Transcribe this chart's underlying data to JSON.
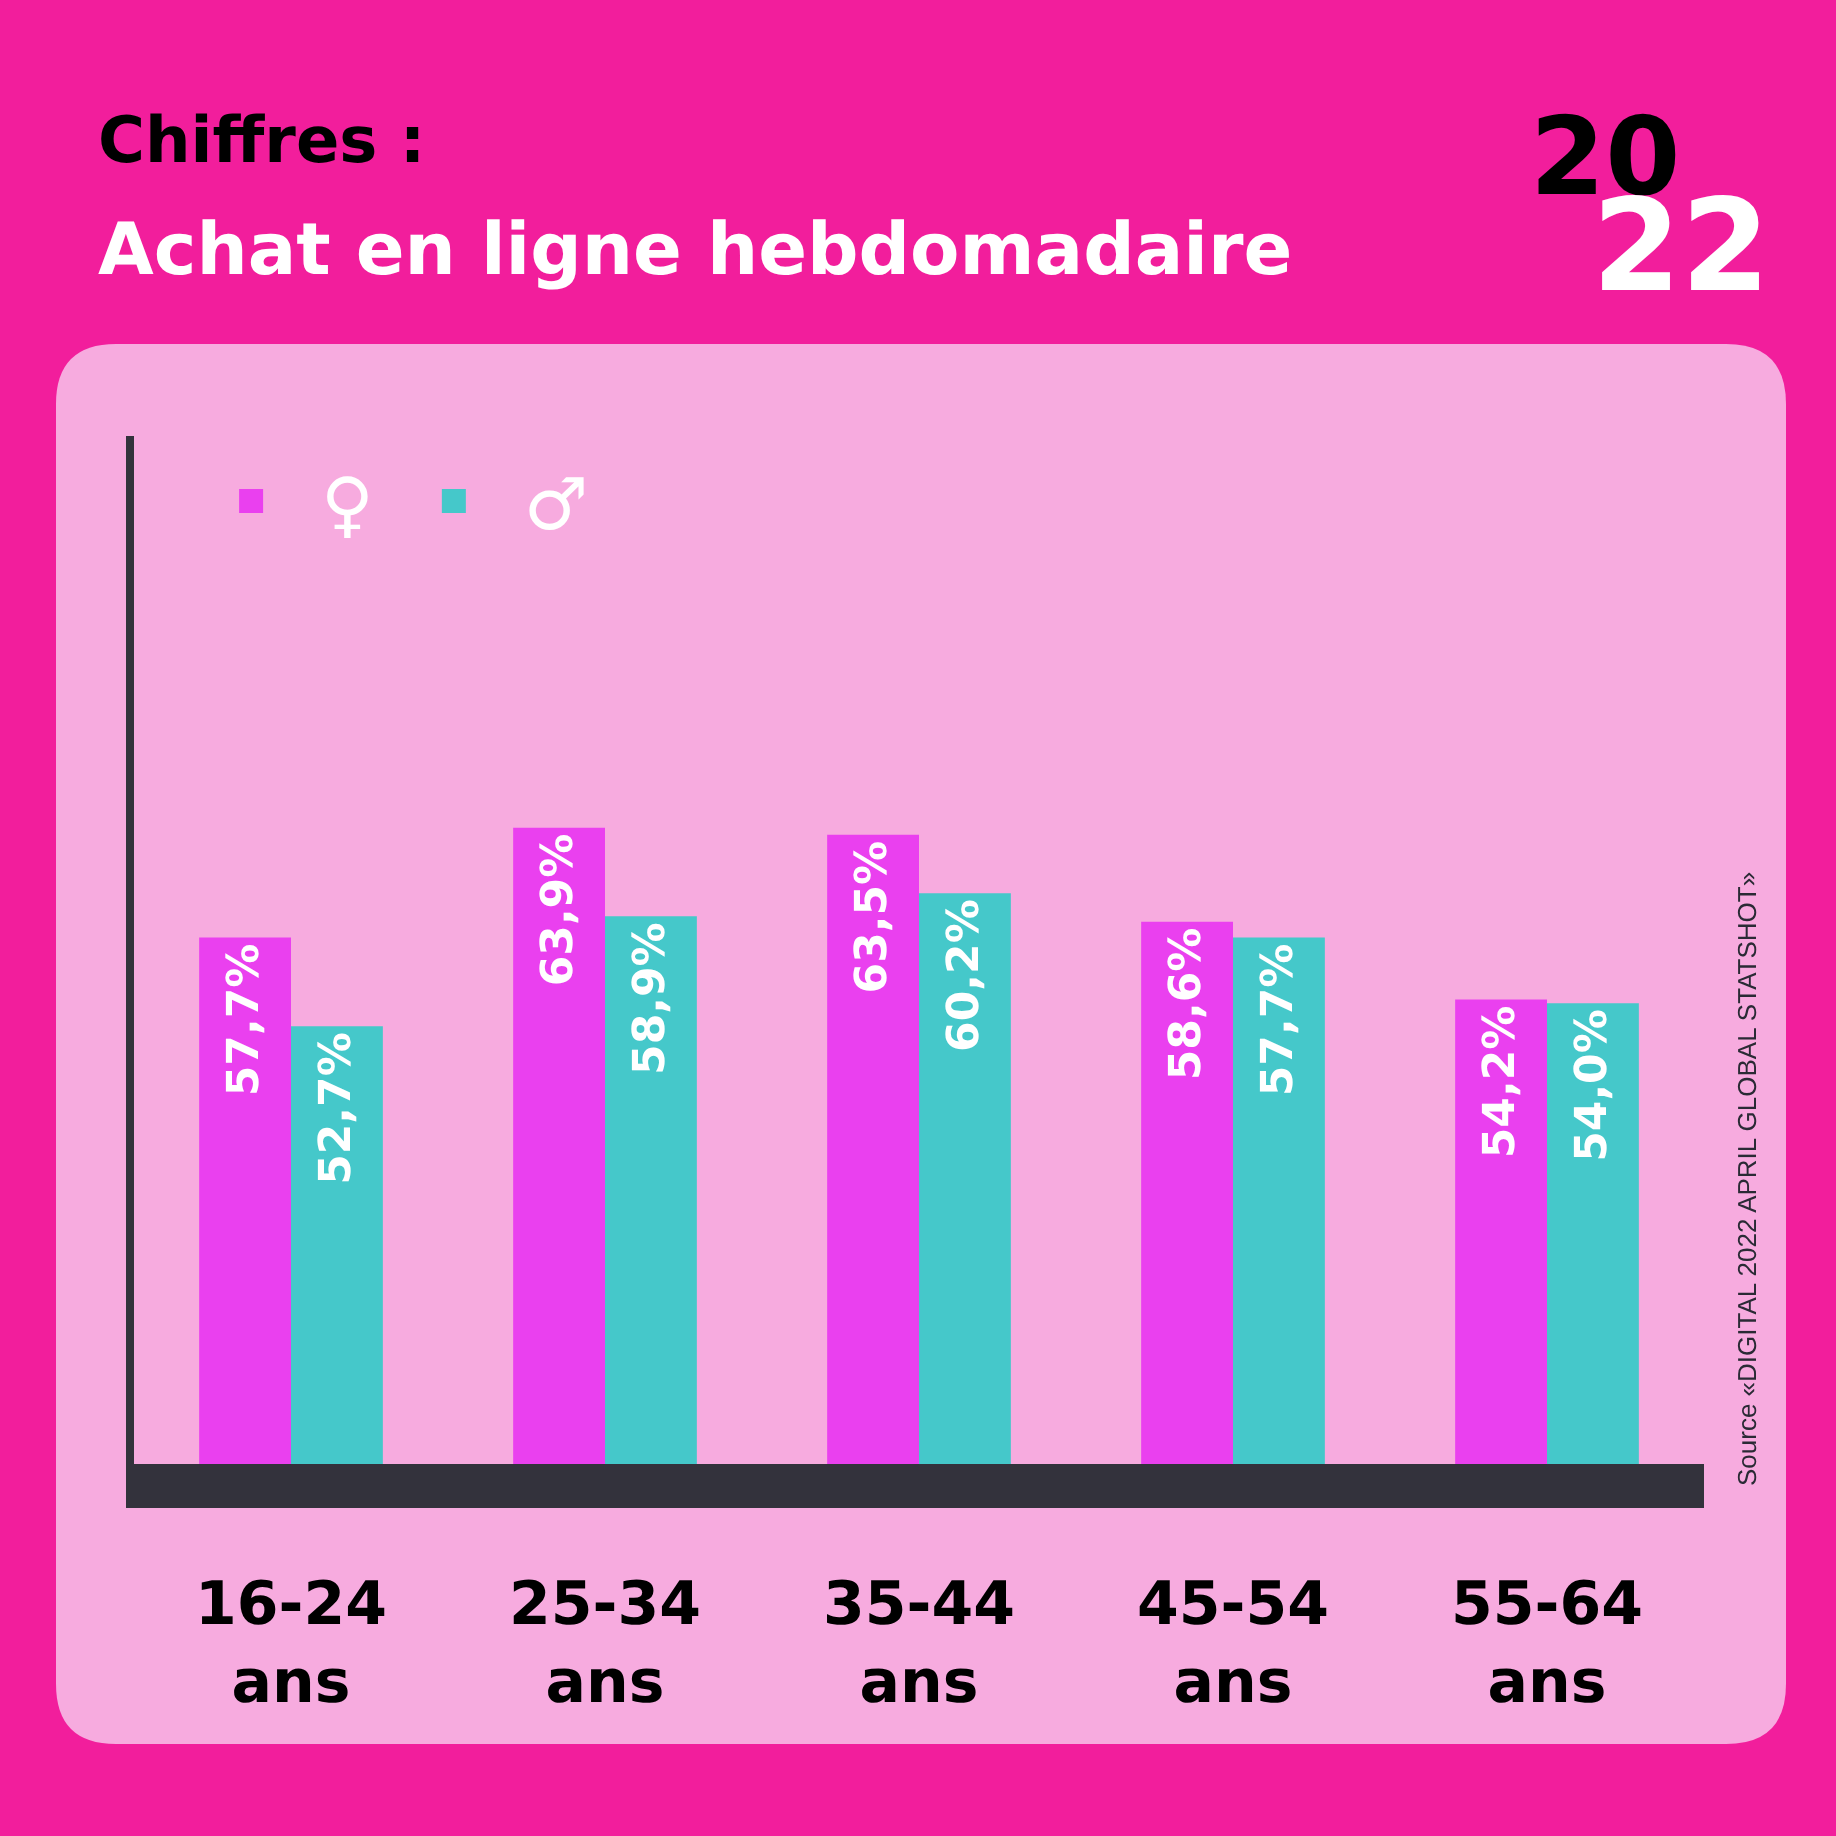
{
  "chart_data": {
    "type": "bar",
    "title": "Chiffres :",
    "subtitle": "Achat en ligne hebdomadaire",
    "categories": [
      "16-24 ans",
      "25-34 ans",
      "35-44 ans",
      "45-54 ans",
      "55-64 ans"
    ],
    "series": [
      {
        "name": "♀",
        "color": "#ea40ef",
        "values": [
          57.7,
          63.9,
          63.5,
          58.6,
          54.2
        ],
        "value_labels": [
          "57,7%",
          "63,9%",
          "63,5%",
          "58,6%",
          "54,2%"
        ]
      },
      {
        "name": "♂",
        "color": "#45c8ca",
        "values": [
          52.7,
          58.9,
          60.2,
          57.7,
          54.0
        ],
        "value_labels": [
          "52,7%",
          "58,9%",
          "60,2%",
          "57,7%",
          "54,0%"
        ]
      }
    ],
    "ylim": [
      28,
      86
    ],
    "tick_labels": "x",
    "legend": "top left",
    "annotations": [
      "20",
      "22",
      "Source «DIGITAL 2022 APRIL GLOBAL STATSHOT»"
    ]
  }
}
